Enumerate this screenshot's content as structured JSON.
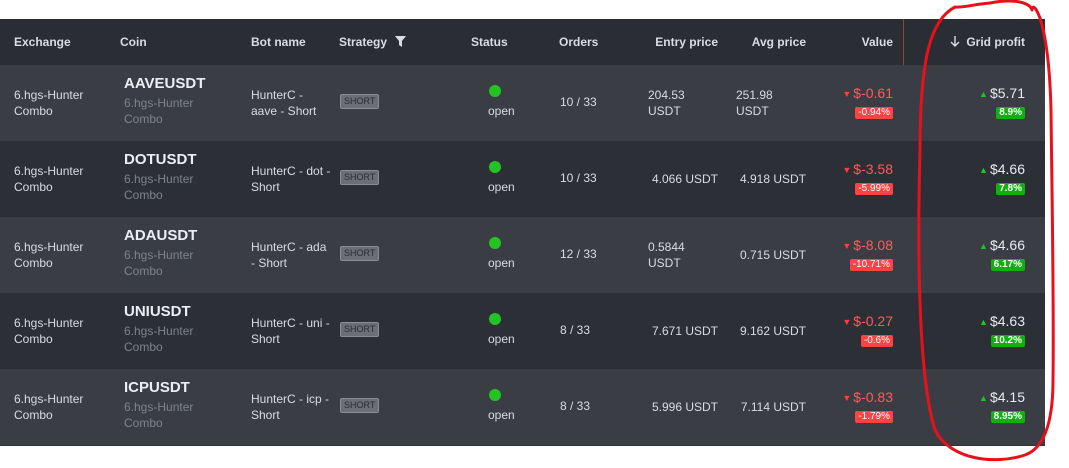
{
  "header": {
    "exchange": "Exchange",
    "coin": "Coin",
    "bot_name": "Bot name",
    "strategy": "Strategy",
    "status": "Status",
    "orders": "Orders",
    "entry_price": "Entry price",
    "avg_price": "Avg price",
    "value": "Value",
    "grid_profit": "Grid profit"
  },
  "rows": [
    {
      "exchange": "6.hgs-Hunter Combo",
      "coin": "AAVEUSDT",
      "coin_sub": "6.hgs-Hunter Combo",
      "bot": "HunterC - aave - Short",
      "strategy": "SHORT",
      "status": "open",
      "orders": "10 / 33",
      "entry": "204.53 USDT",
      "avg": "251.98 USDT",
      "value": "$-0.61",
      "value_pct": "-0.94%",
      "grid_profit": "$5.71",
      "grid_pct": "8.9%"
    },
    {
      "exchange": "6.hgs-Hunter Combo",
      "coin": "DOTUSDT",
      "coin_sub": "6.hgs-Hunter Combo",
      "bot": "HunterC - dot - Short",
      "strategy": "SHORT",
      "status": "open",
      "orders": "10 / 33",
      "entry": "4.066 USDT",
      "avg": "4.918 USDT",
      "value": "$-3.58",
      "value_pct": "-5.99%",
      "grid_profit": "$4.66",
      "grid_pct": "7.8%"
    },
    {
      "exchange": "6.hgs-Hunter Combo",
      "coin": "ADAUSDT",
      "coin_sub": "6.hgs-Hunter Combo",
      "bot": "HunterC - ada - Short",
      "strategy": "SHORT",
      "status": "open",
      "orders": "12 / 33",
      "entry": "0.5844 USDT",
      "avg": "0.715 USDT",
      "value": "$-8.08",
      "value_pct": "-10.71%",
      "grid_profit": "$4.66",
      "grid_pct": "6.17%"
    },
    {
      "exchange": "6.hgs-Hunter Combo",
      "coin": "UNIUSDT",
      "coin_sub": "6.hgs-Hunter Combo",
      "bot": "HunterC - uni - Short",
      "strategy": "SHORT",
      "status": "open",
      "orders": "8 / 33",
      "entry": "7.671 USDT",
      "avg": "9.162 USDT",
      "value": "$-0.27",
      "value_pct": "-0.6%",
      "grid_profit": "$4.63",
      "grid_pct": "10.2%"
    },
    {
      "exchange": "6.hgs-Hunter Combo",
      "coin": "ICPUSDT",
      "coin_sub": "6.hgs-Hunter Combo",
      "bot": "HunterC - icp - Short",
      "strategy": "SHORT",
      "status": "open",
      "orders": "8 / 33",
      "entry": "5.996 USDT",
      "avg": "7.114 USDT",
      "value": "$-0.83",
      "value_pct": "-1.79%",
      "grid_profit": "$4.15",
      "grid_pct": "8.95%"
    }
  ],
  "colors": {
    "row_light": "#3a3d44",
    "row_dark": "#2c2f36",
    "status_open": "#22c322",
    "negative": "#ff4343",
    "positive": "#10b010",
    "annotation": "#e8101a"
  }
}
